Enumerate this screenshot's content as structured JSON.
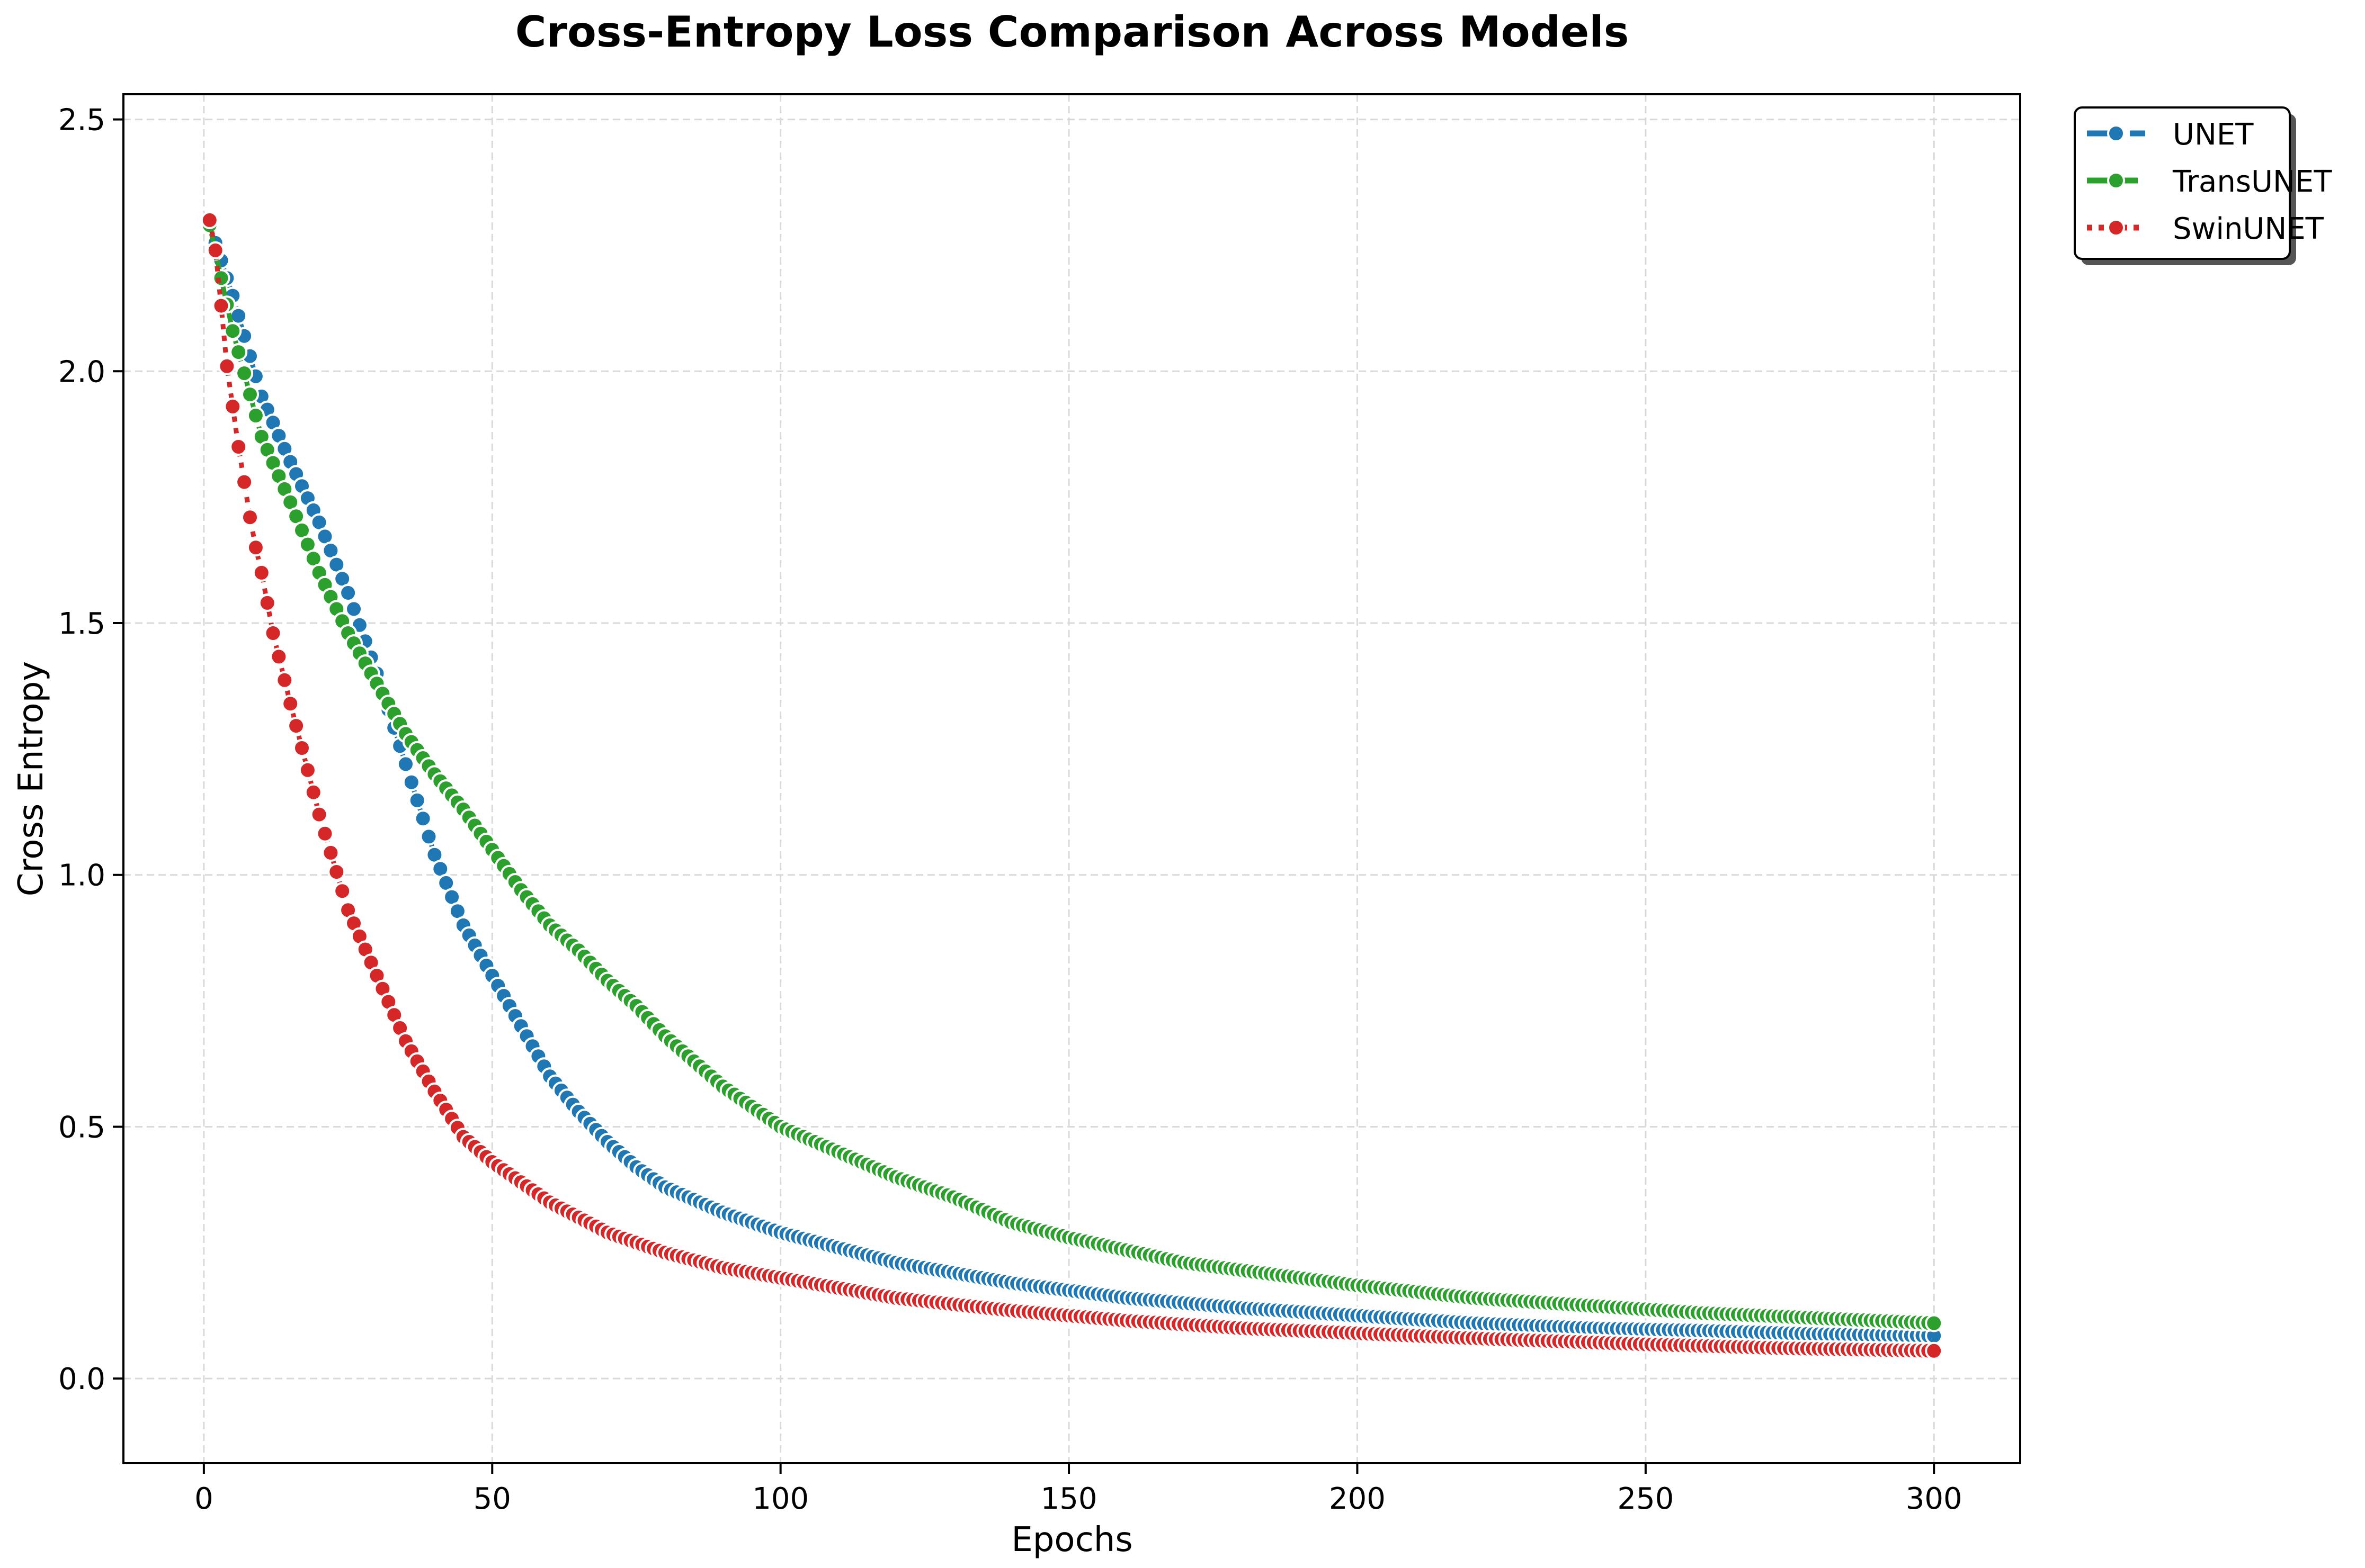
{
  "chart_data": {
    "type": "line",
    "title": "Cross-Entropy Loss Comparison Across Models",
    "xlabel": "Epochs",
    "ylabel": "Cross Entropy",
    "xlim": [
      -13.95,
      314.95
    ],
    "ylim": [
      -0.168,
      2.55
    ],
    "xticks": [
      0,
      50,
      100,
      150,
      200,
      250,
      300
    ],
    "yticks": [
      0.0,
      0.5,
      1.0,
      1.5,
      2.0,
      2.5
    ],
    "xtick_labels": [
      "0",
      "50",
      "100",
      "150",
      "200",
      "250",
      "300"
    ],
    "ytick_labels": [
      "0.0",
      "0.5",
      "1.0",
      "1.5",
      "2.0",
      "2.5"
    ],
    "grid": true,
    "legend_position": "outside-top-right",
    "epochs": {
      "start": 1,
      "end": 300,
      "step": 1
    },
    "series": [
      {
        "name": "UNET",
        "color": "#1f77b4",
        "line_style": "dashdot",
        "marker": "circle",
        "anchors": [
          [
            1,
            2.29
          ],
          [
            5,
            2.15
          ],
          [
            10,
            1.95
          ],
          [
            15,
            1.82
          ],
          [
            20,
            1.7
          ],
          [
            25,
            1.56
          ],
          [
            30,
            1.4
          ],
          [
            35,
            1.22
          ],
          [
            40,
            1.04
          ],
          [
            45,
            0.9
          ],
          [
            50,
            0.8
          ],
          [
            55,
            0.7
          ],
          [
            60,
            0.6
          ],
          [
            65,
            0.53
          ],
          [
            70,
            0.47
          ],
          [
            75,
            0.42
          ],
          [
            80,
            0.38
          ],
          [
            90,
            0.33
          ],
          [
            100,
            0.29
          ],
          [
            120,
            0.23
          ],
          [
            140,
            0.19
          ],
          [
            160,
            0.16
          ],
          [
            180,
            0.14
          ],
          [
            200,
            0.125
          ],
          [
            220,
            0.11
          ],
          [
            240,
            0.1
          ],
          [
            260,
            0.095
          ],
          [
            280,
            0.088
          ],
          [
            300,
            0.085
          ]
        ]
      },
      {
        "name": "TransUNET",
        "color": "#2ca02c",
        "line_style": "dashed",
        "marker": "circle",
        "anchors": [
          [
            1,
            2.29
          ],
          [
            5,
            2.08
          ],
          [
            10,
            1.87
          ],
          [
            15,
            1.74
          ],
          [
            20,
            1.6
          ],
          [
            25,
            1.48
          ],
          [
            30,
            1.38
          ],
          [
            35,
            1.28
          ],
          [
            40,
            1.2
          ],
          [
            45,
            1.13
          ],
          [
            50,
            1.05
          ],
          [
            55,
            0.97
          ],
          [
            60,
            0.9
          ],
          [
            65,
            0.85
          ],
          [
            70,
            0.79
          ],
          [
            75,
            0.74
          ],
          [
            80,
            0.68
          ],
          [
            90,
            0.58
          ],
          [
            100,
            0.5
          ],
          [
            110,
            0.45
          ],
          [
            120,
            0.4
          ],
          [
            130,
            0.36
          ],
          [
            140,
            0.31
          ],
          [
            150,
            0.28
          ],
          [
            160,
            0.255
          ],
          [
            170,
            0.23
          ],
          [
            180,
            0.215
          ],
          [
            200,
            0.185
          ],
          [
            220,
            0.16
          ],
          [
            240,
            0.145
          ],
          [
            260,
            0.13
          ],
          [
            280,
            0.12
          ],
          [
            300,
            0.11
          ]
        ]
      },
      {
        "name": "SwinUNET",
        "color": "#d62728",
        "line_style": "dotted",
        "marker": "circle",
        "anchors": [
          [
            1,
            2.3
          ],
          [
            2,
            2.24
          ],
          [
            3,
            2.13
          ],
          [
            4,
            2.01
          ],
          [
            5,
            1.93
          ],
          [
            6,
            1.85
          ],
          [
            7,
            1.78
          ],
          [
            8,
            1.71
          ],
          [
            9,
            1.65
          ],
          [
            10,
            1.6
          ],
          [
            12,
            1.48
          ],
          [
            15,
            1.34
          ],
          [
            20,
            1.12
          ],
          [
            25,
            0.93
          ],
          [
            30,
            0.8
          ],
          [
            35,
            0.67
          ],
          [
            40,
            0.57
          ],
          [
            45,
            0.48
          ],
          [
            50,
            0.43
          ],
          [
            60,
            0.35
          ],
          [
            70,
            0.29
          ],
          [
            80,
            0.25
          ],
          [
            90,
            0.22
          ],
          [
            100,
            0.2
          ],
          [
            120,
            0.16
          ],
          [
            140,
            0.135
          ],
          [
            160,
            0.115
          ],
          [
            180,
            0.1
          ],
          [
            200,
            0.09
          ],
          [
            220,
            0.08
          ],
          [
            250,
            0.068
          ],
          [
            275,
            0.06
          ],
          [
            300,
            0.055
          ]
        ]
      }
    ]
  }
}
